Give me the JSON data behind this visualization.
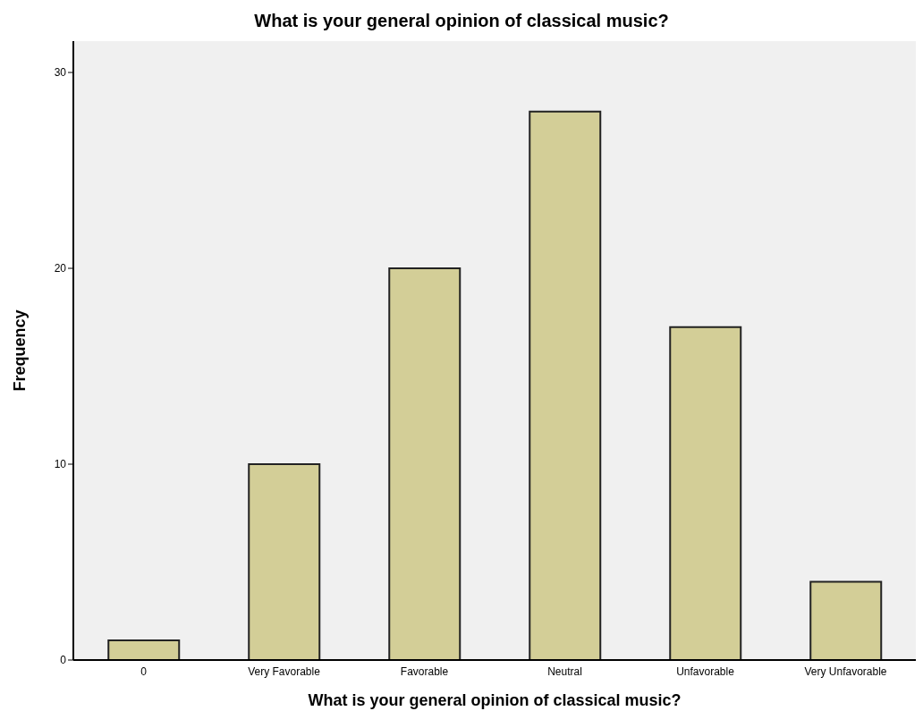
{
  "chart_data": {
    "type": "bar",
    "title": "What is your general opinion of classical music?",
    "xlabel": "What is your general opinion of classical music?",
    "ylabel": "Frequency",
    "categories": [
      "0",
      "Very Favorable",
      "Favorable",
      "Neutral",
      "Unfavorable",
      "Very Unfavorable"
    ],
    "values": [
      1,
      10,
      20,
      28,
      17,
      4
    ],
    "color": "#d3ce97",
    "ylim": [
      0,
      31.6
    ],
    "yticks": [
      0,
      10,
      20,
      30
    ],
    "grid": false
  }
}
